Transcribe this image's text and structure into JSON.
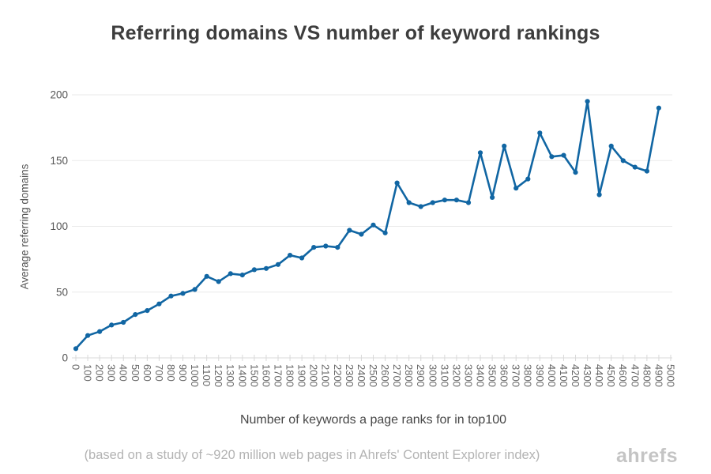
{
  "page": {
    "footnote": "(based on a study of ~920 million web pages in Ahrefs' Content Explorer index)",
    "brand": "ahrefs"
  },
  "chart_data": {
    "type": "line",
    "title": "Referring domains VS number of keyword rankings",
    "xlabel": "Number of keywords a page ranks for in top100",
    "ylabel": "Average referring domains",
    "x": [
      0,
      100,
      200,
      300,
      400,
      500,
      600,
      700,
      800,
      900,
      1000,
      1100,
      1200,
      1300,
      1400,
      1500,
      1600,
      1700,
      1800,
      1900,
      2000,
      2100,
      2200,
      2300,
      2400,
      2500,
      2600,
      2700,
      2800,
      2900,
      3000,
      3100,
      3200,
      3300,
      3400,
      3500,
      3600,
      3700,
      3800,
      3900,
      4000,
      4100,
      4200,
      4300,
      4400,
      4500,
      4600,
      4700,
      4800,
      4900
    ],
    "values": [
      7,
      17,
      20,
      25,
      27,
      33,
      36,
      41,
      47,
      49,
      52,
      62,
      58,
      64,
      63,
      67,
      68,
      71,
      78,
      76,
      84,
      85,
      84,
      97,
      94,
      101,
      95,
      133,
      118,
      115,
      118,
      120,
      120,
      118,
      156,
      122,
      161,
      129,
      136,
      171,
      153,
      154,
      141,
      195,
      124,
      161,
      150,
      145,
      142,
      190
    ],
    "xlim": [
      0,
      5000
    ],
    "ylim": [
      0,
      200
    ],
    "yticks": [
      0,
      50,
      100,
      150,
      200
    ],
    "xtick_step": 100,
    "grid": true,
    "legend": "none",
    "line_color": "#1166a3",
    "grid_color": "#eaeaea",
    "axis_color": "#d9d9d9",
    "tick_label_color": "#666666"
  }
}
